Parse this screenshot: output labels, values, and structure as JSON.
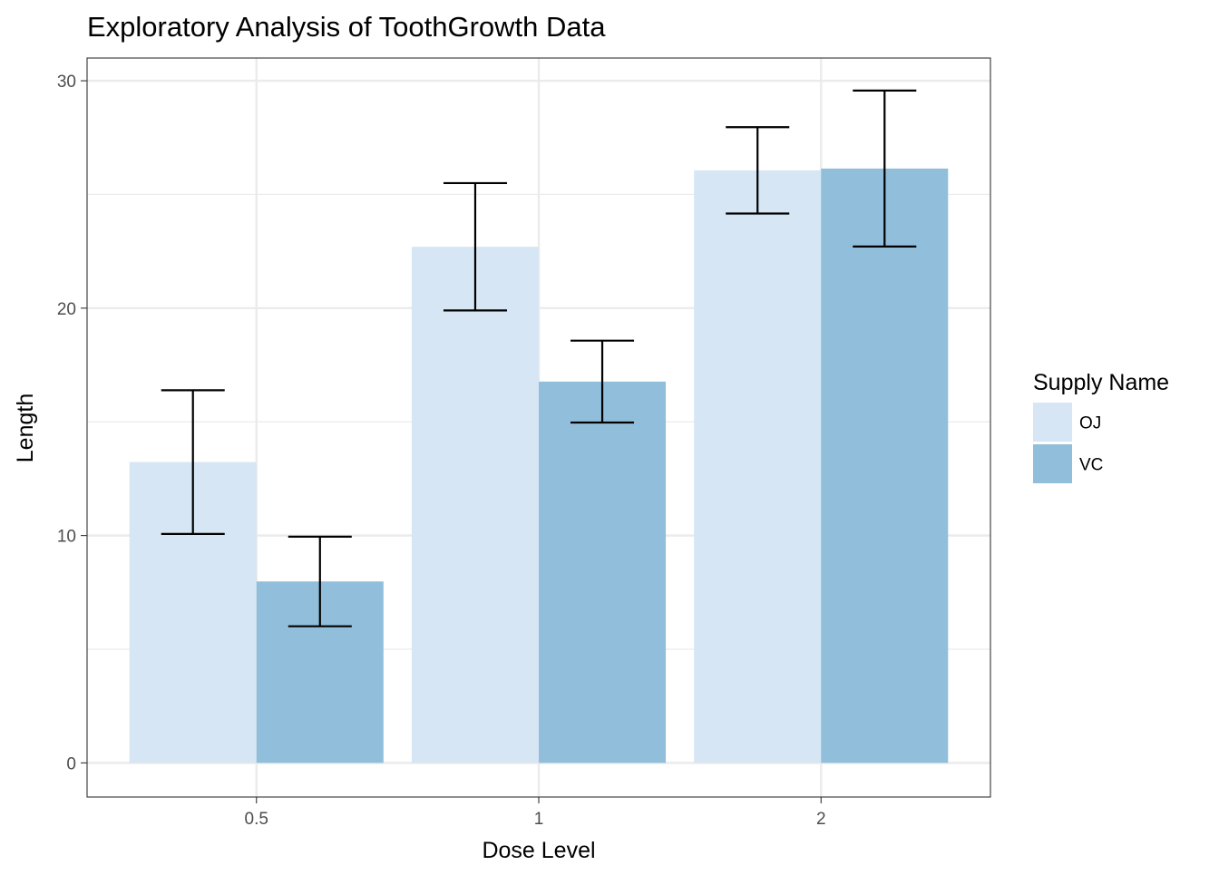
{
  "chart_data": {
    "type": "bar",
    "title": "Exploratory Analysis of ToothGrowth Data",
    "xlabel": "Dose Level",
    "ylabel": "Length",
    "categories": [
      "0.5",
      "1",
      "2"
    ],
    "ylim": [
      -1.5,
      31
    ],
    "yticks": [
      0,
      10,
      20,
      30
    ],
    "ytick_labels": [
      "0",
      "10",
      "20",
      "30"
    ],
    "grid": true,
    "legend": {
      "title": "Supply Name",
      "placement": "right"
    },
    "series": [
      {
        "name": "OJ",
        "color": "#d6e6f4",
        "values": [
          13.23,
          22.7,
          26.06
        ],
        "error_low": [
          10.07,
          19.9,
          24.16
        ],
        "error_high": [
          16.39,
          25.5,
          27.96
        ]
      },
      {
        "name": "VC",
        "color": "#91bfdb",
        "values": [
          7.98,
          16.77,
          26.14
        ],
        "error_low": [
          6.01,
          14.97,
          22.71
        ],
        "error_high": [
          9.95,
          18.57,
          29.57
        ]
      }
    ],
    "colors": {
      "panel_border": "#333333",
      "grid_major": "#ebebeb",
      "grid_minor": "#ebebeb",
      "errorbar": "#000000",
      "tick_label": "#4d4d4d",
      "text": "#000000"
    }
  }
}
